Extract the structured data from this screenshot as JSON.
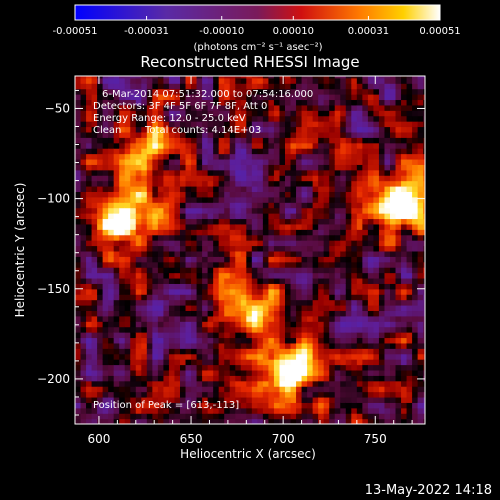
{
  "colorbar": {
    "tick_labels": [
      "-0.00051",
      "-0.00031",
      "-0.00010",
      "0.00010",
      "0.00031",
      "0.00051"
    ],
    "tick_values": [
      -0.00051,
      -0.00031,
      -0.0001,
      0.0001,
      0.00031,
      0.00051
    ],
    "range": [
      -0.00051,
      0.00051
    ],
    "unit_label": "(photons cm⁻² s⁻¹ asec⁻²)"
  },
  "chart_data": {
    "type": "heatmap",
    "title": "Reconstructed RHESSI Image",
    "xlabel": "Heliocentric X (arcsec)",
    "ylabel": "Heliocentric Y (arcsec)",
    "xlim": [
      587,
      777
    ],
    "ylim": [
      -225,
      -32
    ],
    "x_ticks": [
      600,
      650,
      700,
      750
    ],
    "x_tick_labels": [
      "600",
      "650",
      "700",
      "750"
    ],
    "y_ticks": [
      -50,
      -100,
      -150,
      -200
    ],
    "y_tick_labels": [
      "−50",
      "−100",
      "−150",
      "−200"
    ],
    "colormap": "hot-metal (blue → purple → red → orange → yellow → white)",
    "bright_regions": [
      {
        "x": 613,
        "y": -113,
        "level": 0.9
      },
      {
        "x": 700,
        "y": -195,
        "level": 0.95
      },
      {
        "x": 765,
        "y": -105,
        "level": 0.85
      },
      {
        "x": 625,
        "y": -75,
        "level": 0.6
      },
      {
        "x": 680,
        "y": -160,
        "level": 0.6
      }
    ],
    "annotations": {
      "line1": "6-Mar-2014 07:51:32.000 to 07:54:16.000",
      "line2": "Detectors: 3F 4F 5F 6F 7F 8F, Att 0",
      "line3": "Energy Range: 12.0 - 25.0 keV",
      "line4_left": "Clean",
      "line4_right": "Total counts: 4.14E+03",
      "peak": "Position of Peak = [613,-113]"
    }
  },
  "footer_timestamp": "13-May-2022 14:18"
}
